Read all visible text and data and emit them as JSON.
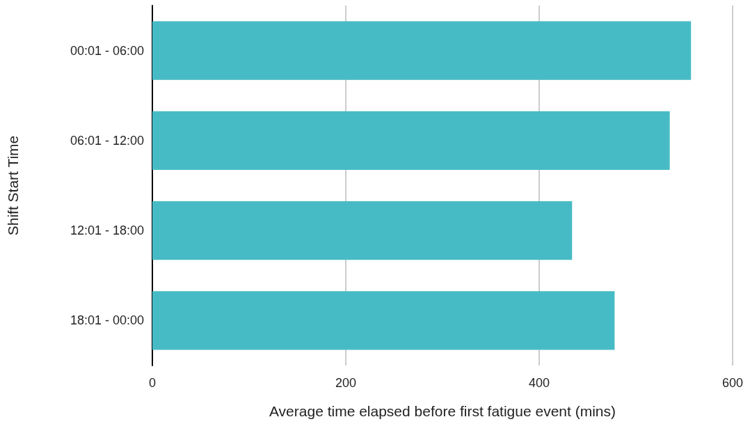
{
  "chart_data": {
    "type": "bar",
    "orientation": "horizontal",
    "xlabel": "Average time elapsed before first fatigue event (mins)",
    "ylabel": "Shift Start Time",
    "categories": [
      "00:01 - 06:00",
      "06:01 - 12:00",
      "12:01 - 18:00",
      "18:01 - 00:00"
    ],
    "values": [
      557,
      535,
      434,
      478
    ],
    "color": "#47bbc5",
    "xlim": [
      0,
      600
    ],
    "xticks": [
      0,
      200,
      400,
      600
    ],
    "grid": "x"
  }
}
